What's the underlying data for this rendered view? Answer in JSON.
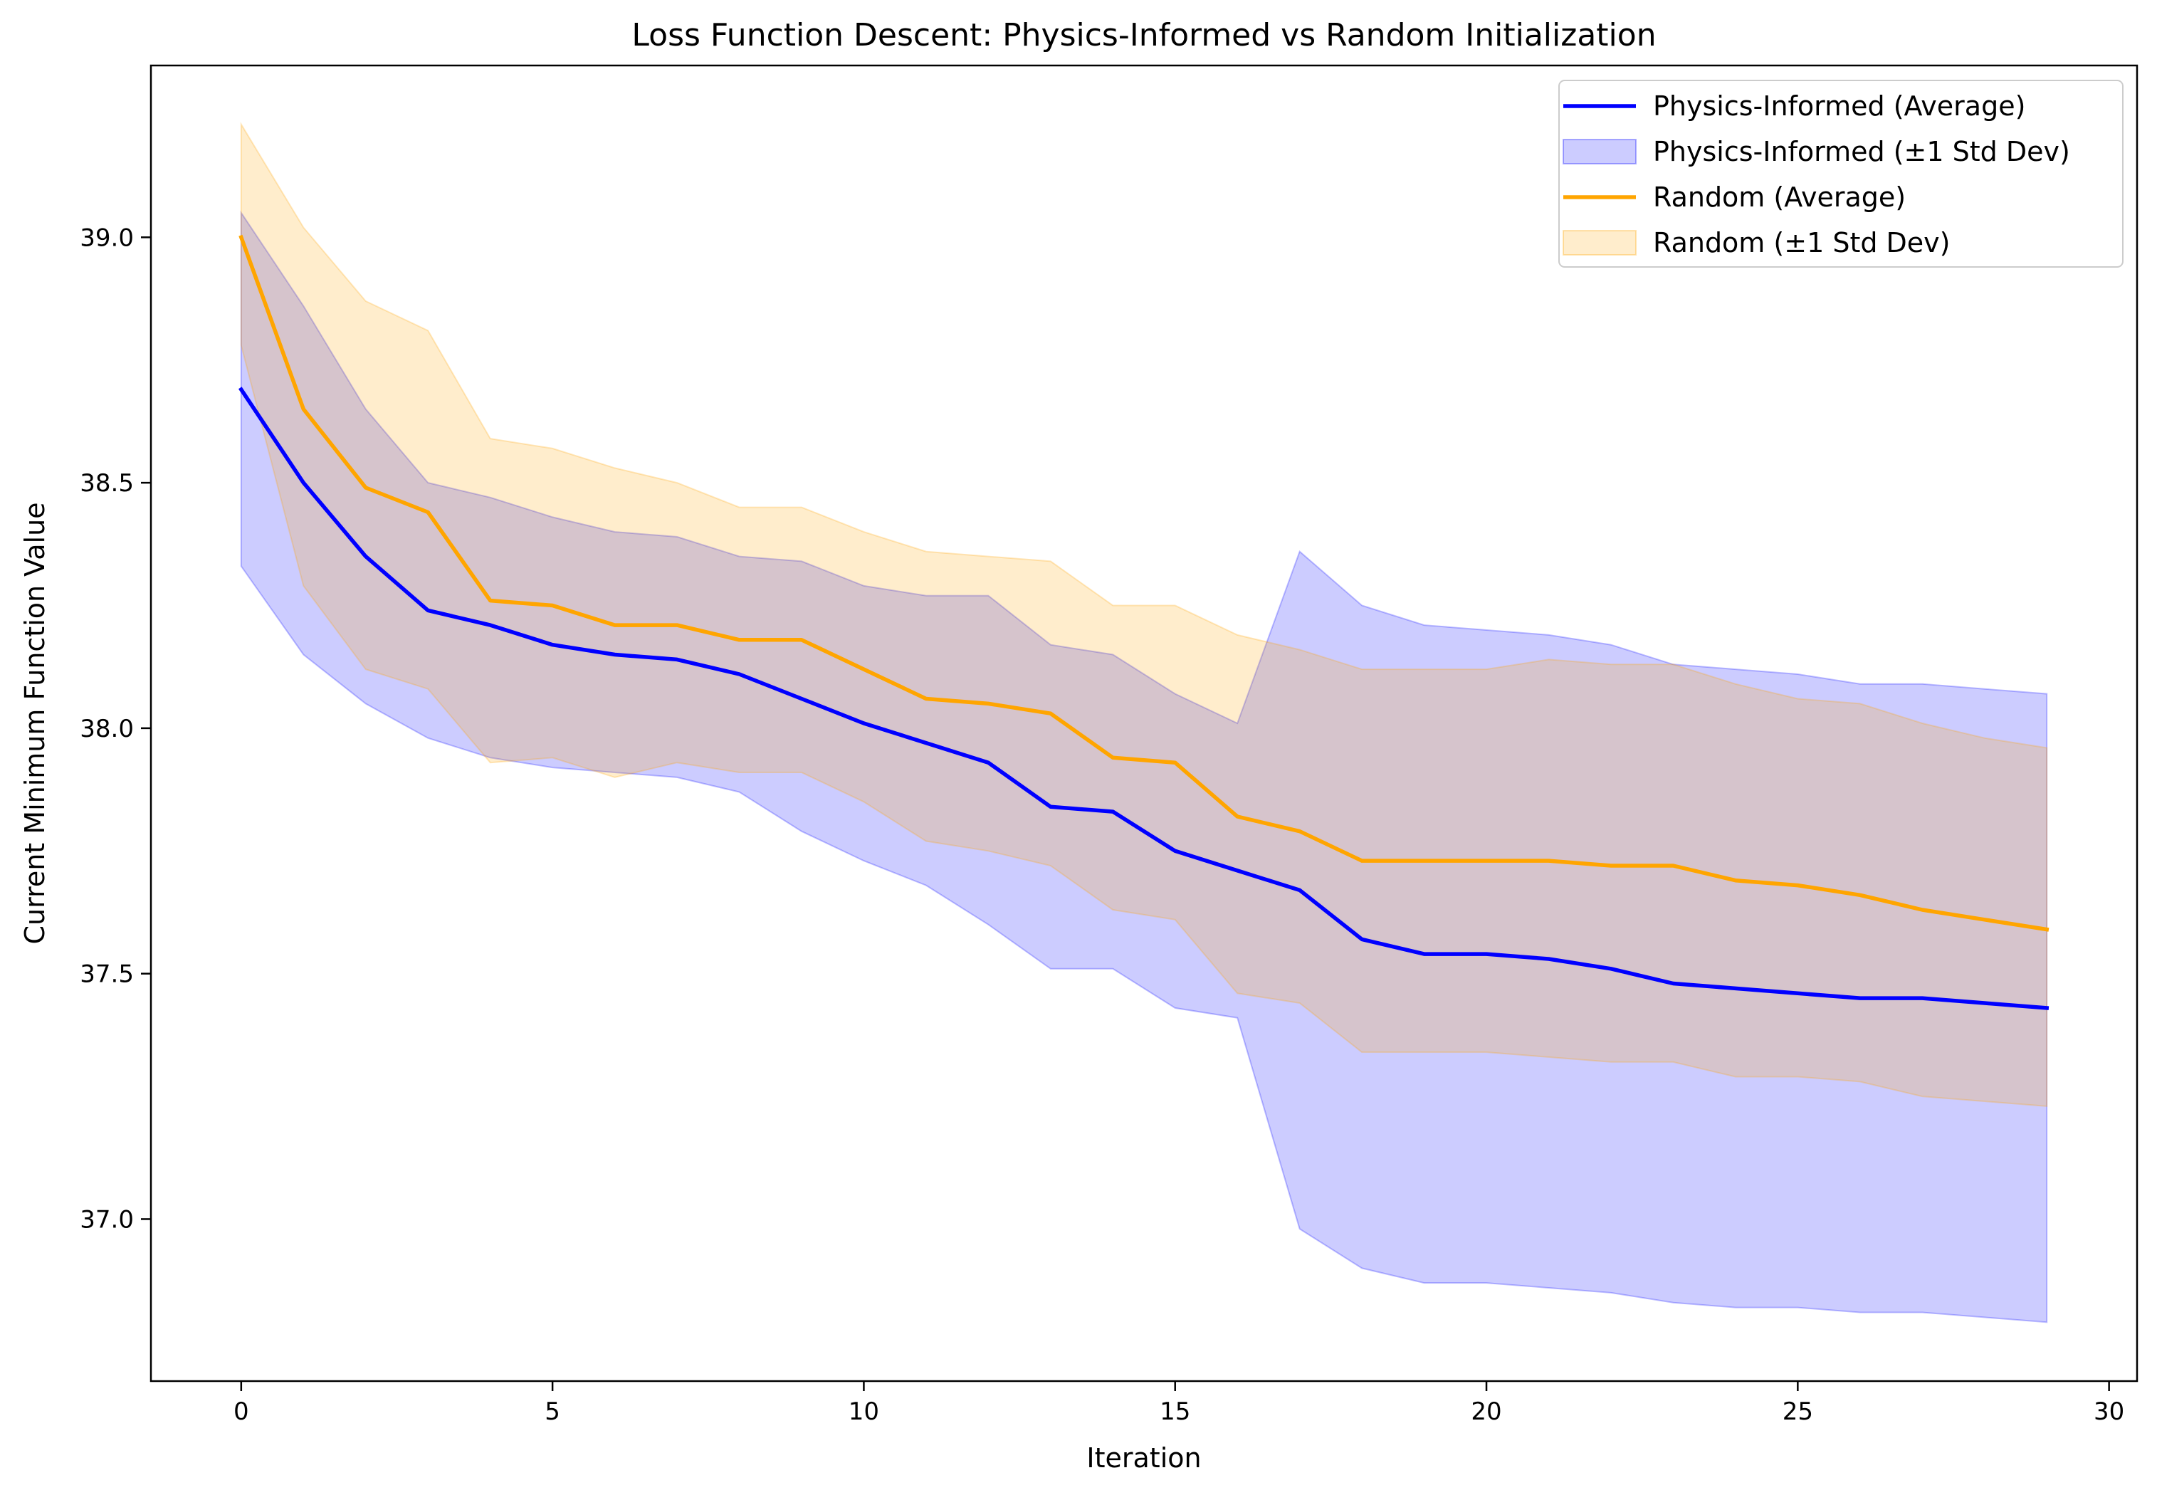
{
  "chart_data": {
    "type": "line",
    "title": "Loss Function Descent: Physics-Informed vs Random Initialization",
    "xlabel": "Iteration",
    "ylabel": "Current Minimum Function Value",
    "xlim": [
      -1.45,
      30.45
    ],
    "ylim": [
      36.67,
      39.35
    ],
    "xticks": [
      0,
      5,
      10,
      15,
      20,
      25,
      30
    ],
    "yticks": [
      37.0,
      37.5,
      38.0,
      38.5,
      39.0
    ],
    "grid": false,
    "legend_position": "top-right",
    "x": [
      0,
      1,
      2,
      3,
      4,
      5,
      6,
      7,
      8,
      9,
      10,
      11,
      12,
      13,
      14,
      15,
      16,
      17,
      18,
      19,
      20,
      21,
      22,
      23,
      24,
      25,
      26,
      27,
      28,
      29
    ],
    "series": [
      {
        "name": "Physics-Informed (Average)",
        "band_name": "Physics-Informed (±1 Std Dev)",
        "color": "#0000ff",
        "band_color": "#0000ff",
        "band_opacity": 0.2,
        "values": [
          38.69,
          38.5,
          38.35,
          38.24,
          38.21,
          38.17,
          38.15,
          38.14,
          38.11,
          38.06,
          38.01,
          37.97,
          37.93,
          37.84,
          37.83,
          37.75,
          37.71,
          37.67,
          37.57,
          37.54,
          37.54,
          37.53,
          37.51,
          37.48,
          37.47,
          37.46,
          37.45,
          37.45,
          37.44,
          37.43
        ],
        "upper": [
          39.05,
          38.86,
          38.65,
          38.5,
          38.47,
          38.43,
          38.4,
          38.39,
          38.35,
          38.34,
          38.29,
          38.27,
          38.27,
          38.17,
          38.15,
          38.07,
          38.01,
          38.36,
          38.25,
          38.21,
          38.2,
          38.19,
          38.17,
          38.13,
          38.12,
          38.11,
          38.09,
          38.09,
          38.08,
          38.07
        ],
        "lower": [
          38.33,
          38.15,
          38.05,
          37.98,
          37.94,
          37.92,
          37.91,
          37.9,
          37.87,
          37.79,
          37.73,
          37.68,
          37.6,
          37.51,
          37.51,
          37.43,
          37.41,
          36.98,
          36.9,
          36.87,
          36.87,
          36.86,
          36.85,
          36.83,
          36.82,
          36.82,
          36.81,
          36.81,
          36.8,
          36.79
        ]
      },
      {
        "name": "Random (Average)",
        "band_name": "Random (±1 Std Dev)",
        "color": "#ffa500",
        "band_color": "#ffa500",
        "band_opacity": 0.2,
        "values": [
          39.0,
          38.65,
          38.49,
          38.44,
          38.26,
          38.25,
          38.21,
          38.21,
          38.18,
          38.18,
          38.12,
          38.06,
          38.05,
          38.03,
          37.94,
          37.93,
          37.82,
          37.79,
          37.73,
          37.73,
          37.73,
          37.73,
          37.72,
          37.72,
          37.69,
          37.68,
          37.66,
          37.63,
          37.61,
          37.59
        ],
        "upper": [
          39.23,
          39.02,
          38.87,
          38.81,
          38.59,
          38.57,
          38.53,
          38.5,
          38.45,
          38.45,
          38.4,
          38.36,
          38.35,
          38.34,
          38.25,
          38.25,
          38.19,
          38.16,
          38.12,
          38.12,
          38.12,
          38.14,
          38.13,
          38.13,
          38.09,
          38.06,
          38.05,
          38.01,
          37.98,
          37.96
        ],
        "lower": [
          38.78,
          38.29,
          38.12,
          38.08,
          37.93,
          37.94,
          37.9,
          37.93,
          37.91,
          37.91,
          37.85,
          37.77,
          37.75,
          37.72,
          37.63,
          37.61,
          37.46,
          37.44,
          37.34,
          37.34,
          37.34,
          37.33,
          37.32,
          37.32,
          37.29,
          37.29,
          37.28,
          37.25,
          37.24,
          37.23
        ]
      }
    ]
  }
}
